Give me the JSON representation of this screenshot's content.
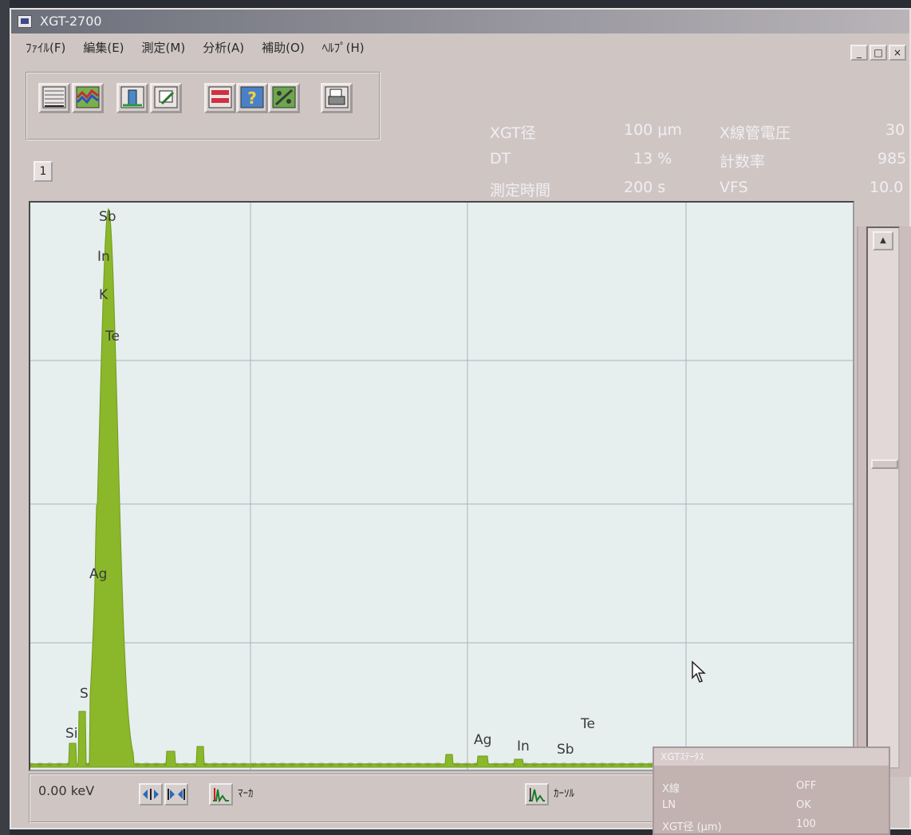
{
  "window": {
    "title": "XGT-2700"
  },
  "menu": [
    {
      "label": "ﾌｧｲﾙ(F)"
    },
    {
      "label": "編集(E)"
    },
    {
      "label": "測定(M)"
    },
    {
      "label": "分析(A)"
    },
    {
      "label": "補助(O)"
    },
    {
      "label": "ﾍﾙﾌﾟ(H)"
    }
  ],
  "window_controls": [
    "_",
    "□",
    "×"
  ],
  "toolbar": {
    "icons": [
      "spectrum-view-icon",
      "multi-spectrum-icon",
      "measure-setup-icon",
      "edit-setup-icon",
      "save-icon",
      "help-icon",
      "analysis-icon",
      "print-icon"
    ]
  },
  "tab": {
    "label": "1"
  },
  "info": {
    "rows": [
      {
        "label": "XGT径",
        "value": "100 μm",
        "label2": "X線管電圧",
        "value2": "30"
      },
      {
        "label": "DT",
        "value": "13 %",
        "label2": "計数率",
        "value2": "985"
      },
      {
        "label": "測定時間",
        "value": "200 s",
        "label2": "VFS",
        "value2": "10.0"
      }
    ]
  },
  "chart_data": {
    "type": "line",
    "series_color": "#8bb82a",
    "grid": true,
    "peak_labels_left": [
      {
        "text": "Sb"
      },
      {
        "text": "In"
      },
      {
        "text": "K"
      },
      {
        "text": "Te"
      },
      {
        "text": "Ag"
      },
      {
        "text": "S"
      },
      {
        "text": "Si"
      }
    ],
    "peak_labels_right": [
      {
        "text": "Ag"
      },
      {
        "text": "In"
      },
      {
        "text": "Sb"
      },
      {
        "text": "Te"
      }
    ]
  },
  "bottom": {
    "kev_readout": "0.00 keV",
    "marker_label": "ﾏｰｶ",
    "cursor_label": "ｶｰｿﾙ"
  },
  "status_panel": {
    "title": "XGTｽﾃｰﾀｽ",
    "rows": [
      {
        "label": "X線",
        "value": "OFF"
      },
      {
        "label": "LN",
        "value": "OK"
      },
      {
        "label": "XGT径 (μm)",
        "value": "100"
      }
    ]
  }
}
